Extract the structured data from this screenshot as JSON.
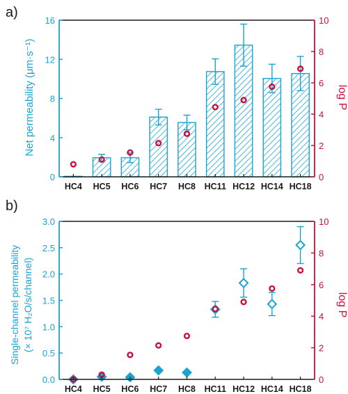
{
  "colors": {
    "cyan": "#1aa3d1",
    "crimson": "#c8103c",
    "axis": "#1a1a1a"
  },
  "chart_data": [
    {
      "panel_label": "a)",
      "type": "bar",
      "categories": [
        "HC4",
        "HC5",
        "HC6",
        "HC7",
        "HC8",
        "HC11",
        "HC12",
        "HC14",
        "HC18"
      ],
      "ylabel": "Net permeability (μm·s⁻¹)",
      "ylim": [
        0,
        16
      ],
      "yticks": [
        0,
        4,
        8,
        12,
        16
      ],
      "y2label": "log P",
      "y2lim": [
        0,
        10
      ],
      "y2ticks": [
        0,
        2,
        4,
        6,
        8,
        10
      ],
      "series": [
        {
          "kind": "bars",
          "color": "#1aa3d1",
          "pattern": "hatched",
          "values": [
            0.05,
            1.95,
            1.95,
            6.1,
            5.55,
            10.75,
            13.45,
            10.05,
            10.55
          ],
          "errors": [
            0,
            0.35,
            0.5,
            0.8,
            0.75,
            1.3,
            2.15,
            1.45,
            1.75
          ]
        },
        {
          "kind": "scatter",
          "axis": "right",
          "marker": "open-circle",
          "color": "#c8103c",
          "values": [
            0.8,
            1.1,
            1.55,
            2.15,
            2.75,
            4.45,
            4.9,
            5.75,
            6.9
          ]
        }
      ]
    },
    {
      "panel_label": "b)",
      "type": "scatter",
      "categories": [
        "HC4",
        "HC5",
        "HC6",
        "HC7",
        "HC8",
        "HC11",
        "HC12",
        "HC14",
        "HC18"
      ],
      "ylabel_line1": "Single-channel permeability",
      "ylabel_line2": "(× 10⁷ H₂O/s/channel)",
      "ylim": [
        0,
        3.0
      ],
      "yticks": [
        "0.0",
        "0.5",
        "1.0",
        "1.5",
        "2.0",
        "2.5",
        "3.0"
      ],
      "y2label": "log P",
      "y2lim": [
        0,
        10
      ],
      "y2ticks": [
        0,
        2,
        4,
        6,
        8,
        10
      ],
      "series": [
        {
          "kind": "diamonds",
          "color": "#1aa3d1",
          "values": [
            0.0,
            0.05,
            0.04,
            0.17,
            0.13,
            1.33,
            1.83,
            1.43,
            2.55
          ],
          "errors": [
            0,
            0,
            0,
            0,
            0,
            0.15,
            0.27,
            0.22,
            0.35
          ],
          "open": [
            false,
            false,
            false,
            false,
            false,
            true,
            true,
            true,
            true
          ]
        },
        {
          "kind": "scatter",
          "axis": "right",
          "marker": "open-circle",
          "color": "#c8103c",
          "values": [
            0.0,
            0.3,
            1.55,
            2.15,
            2.75,
            4.45,
            4.9,
            5.75,
            6.9
          ]
        }
      ]
    }
  ]
}
